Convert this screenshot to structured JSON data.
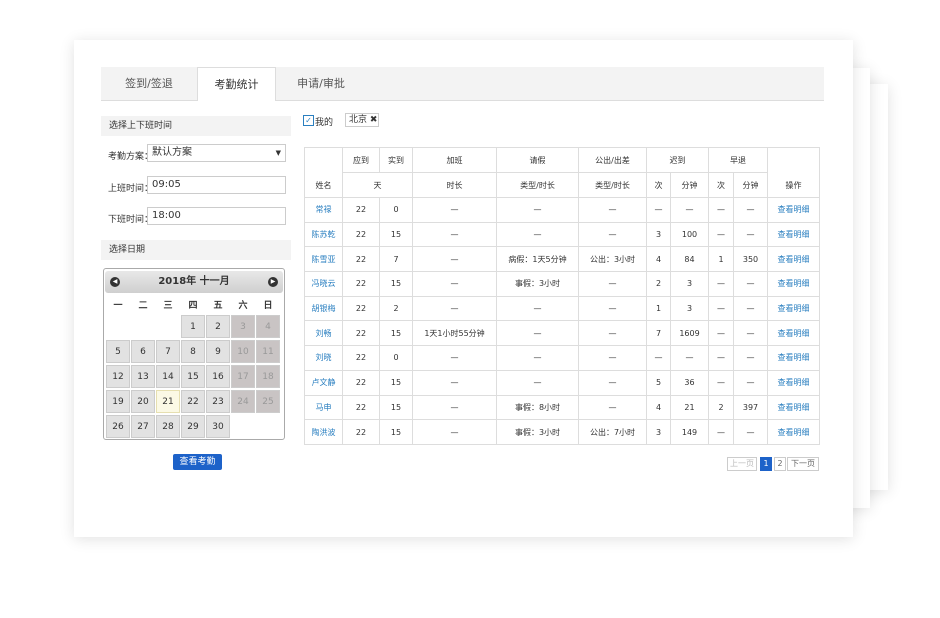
{
  "tabs": [
    "签到/签退",
    "考勤统计",
    "申请/审批"
  ],
  "left": {
    "time_section": "选择上下班时间",
    "scheme_label": "考勤方案：",
    "scheme_value": "默认方案",
    "start_label": "上班时间：",
    "start_value": "09:05",
    "end_label": "下班时间：",
    "end_value": "18:00",
    "date_section": "选择日期",
    "calendar": {
      "title": "2018年 十一月",
      "weekdays": [
        "一",
        "二",
        "三",
        "四",
        "五",
        "六",
        "日"
      ],
      "weeks": [
        [
          null,
          null,
          null,
          1,
          2,
          3,
          4
        ],
        [
          5,
          6,
          7,
          8,
          9,
          10,
          11
        ],
        [
          12,
          13,
          14,
          15,
          16,
          17,
          18
        ],
        [
          19,
          20,
          21,
          22,
          23,
          24,
          25
        ],
        [
          26,
          27,
          28,
          29,
          30,
          null,
          null
        ]
      ]
    },
    "button": "查看考勤"
  },
  "filter": {
    "mine": "我的",
    "tag": "北京"
  },
  "table": {
    "name_header": "姓名",
    "action_header": "操作",
    "header1": [
      "应到",
      "实到",
      "加班",
      "请假",
      "公出/出差",
      "迟到",
      "早退"
    ],
    "header2": [
      "天",
      "时长",
      "类型/时长",
      "类型/时长",
      "次",
      "分钟",
      "次",
      "分钟"
    ],
    "action": "查看明细",
    "rows": [
      [
        "常禄",
        "22",
        "0",
        "—",
        "—",
        "—",
        "—",
        "—",
        "—",
        "—"
      ],
      [
        "陈苏乾",
        "22",
        "15",
        "—",
        "—",
        "—",
        "3",
        "100",
        "—",
        "—"
      ],
      [
        "陈雪亚",
        "22",
        "7",
        "—",
        "病假：1天5分钟",
        "公出：3小时",
        "4",
        "84",
        "1",
        "350"
      ],
      [
        "冯晓云",
        "22",
        "15",
        "—",
        "事假：3小时",
        "—",
        "2",
        "3",
        "—",
        "—"
      ],
      [
        "胡银梅",
        "22",
        "2",
        "—",
        "—",
        "—",
        "1",
        "3",
        "—",
        "—"
      ],
      [
        "刘畅",
        "22",
        "15",
        "1天1小时55分钟",
        "—",
        "—",
        "7",
        "1609",
        "—",
        "—"
      ],
      [
        "刘晓",
        "22",
        "0",
        "—",
        "—",
        "—",
        "—",
        "—",
        "—",
        "—"
      ],
      [
        "卢文静",
        "22",
        "15",
        "—",
        "—",
        "—",
        "5",
        "36",
        "—",
        "—"
      ],
      [
        "马申",
        "22",
        "15",
        "—",
        "事假：8小时",
        "—",
        "4",
        "21",
        "2",
        "397"
      ],
      [
        "陶洪波",
        "22",
        "15",
        "—",
        "事假：3小时",
        "公出：7小时",
        "3",
        "149",
        "—",
        "—"
      ]
    ]
  },
  "pagination": {
    "prev": "上一页",
    "pages": [
      1,
      2
    ],
    "next": "下一页"
  }
}
